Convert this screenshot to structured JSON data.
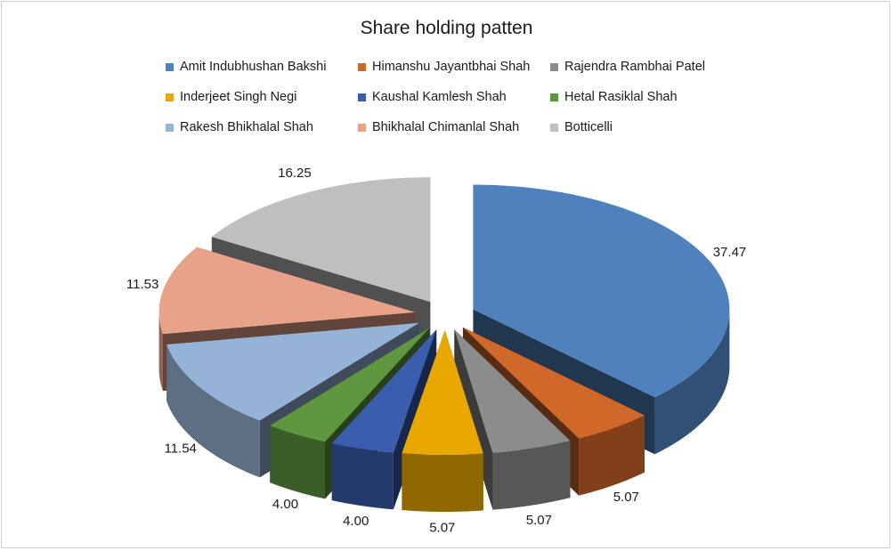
{
  "chart_data": {
    "type": "pie",
    "title": "Share holding patten",
    "legend_position": "top",
    "exploded": true,
    "three_d": true,
    "slices": [
      {
        "name": "Amit Indubhushan  Bakshi",
        "value": 37.47,
        "label": "37.47",
        "color": "#4F81BD"
      },
      {
        "name": "Himanshu Jayantbhai Shah",
        "value": 5.07,
        "label": "5.07",
        "color": "#D0682A"
      },
      {
        "name": "Rajendra Rambhai Patel",
        "value": 5.07,
        "label": "5.07",
        "color": "#8C8C8C"
      },
      {
        "name": "Inderjeet Singh  Negi",
        "value": 5.07,
        "label": "5.07",
        "color": "#E8A800"
      },
      {
        "name": "Kaushal Kamlesh Shah",
        "value": 4.0,
        "label": "4.00",
        "color": "#3A5DAE"
      },
      {
        "name": "Hetal Rasiklal Shah",
        "value": 4.0,
        "label": "4.00",
        "color": "#5F9640"
      },
      {
        "name": "Rakesh Bhikhalal Shah",
        "value": 11.54,
        "label": "11.54",
        "color": "#95B3D7"
      },
      {
        "name": "Bhikhalal Chimanlal Shah",
        "value": 11.53,
        "label": "11.53",
        "color": "#E9A28A"
      },
      {
        "name": "Botticelli",
        "value": 16.25,
        "label": "16.25",
        "color": "#BFBFBF"
      }
    ]
  }
}
